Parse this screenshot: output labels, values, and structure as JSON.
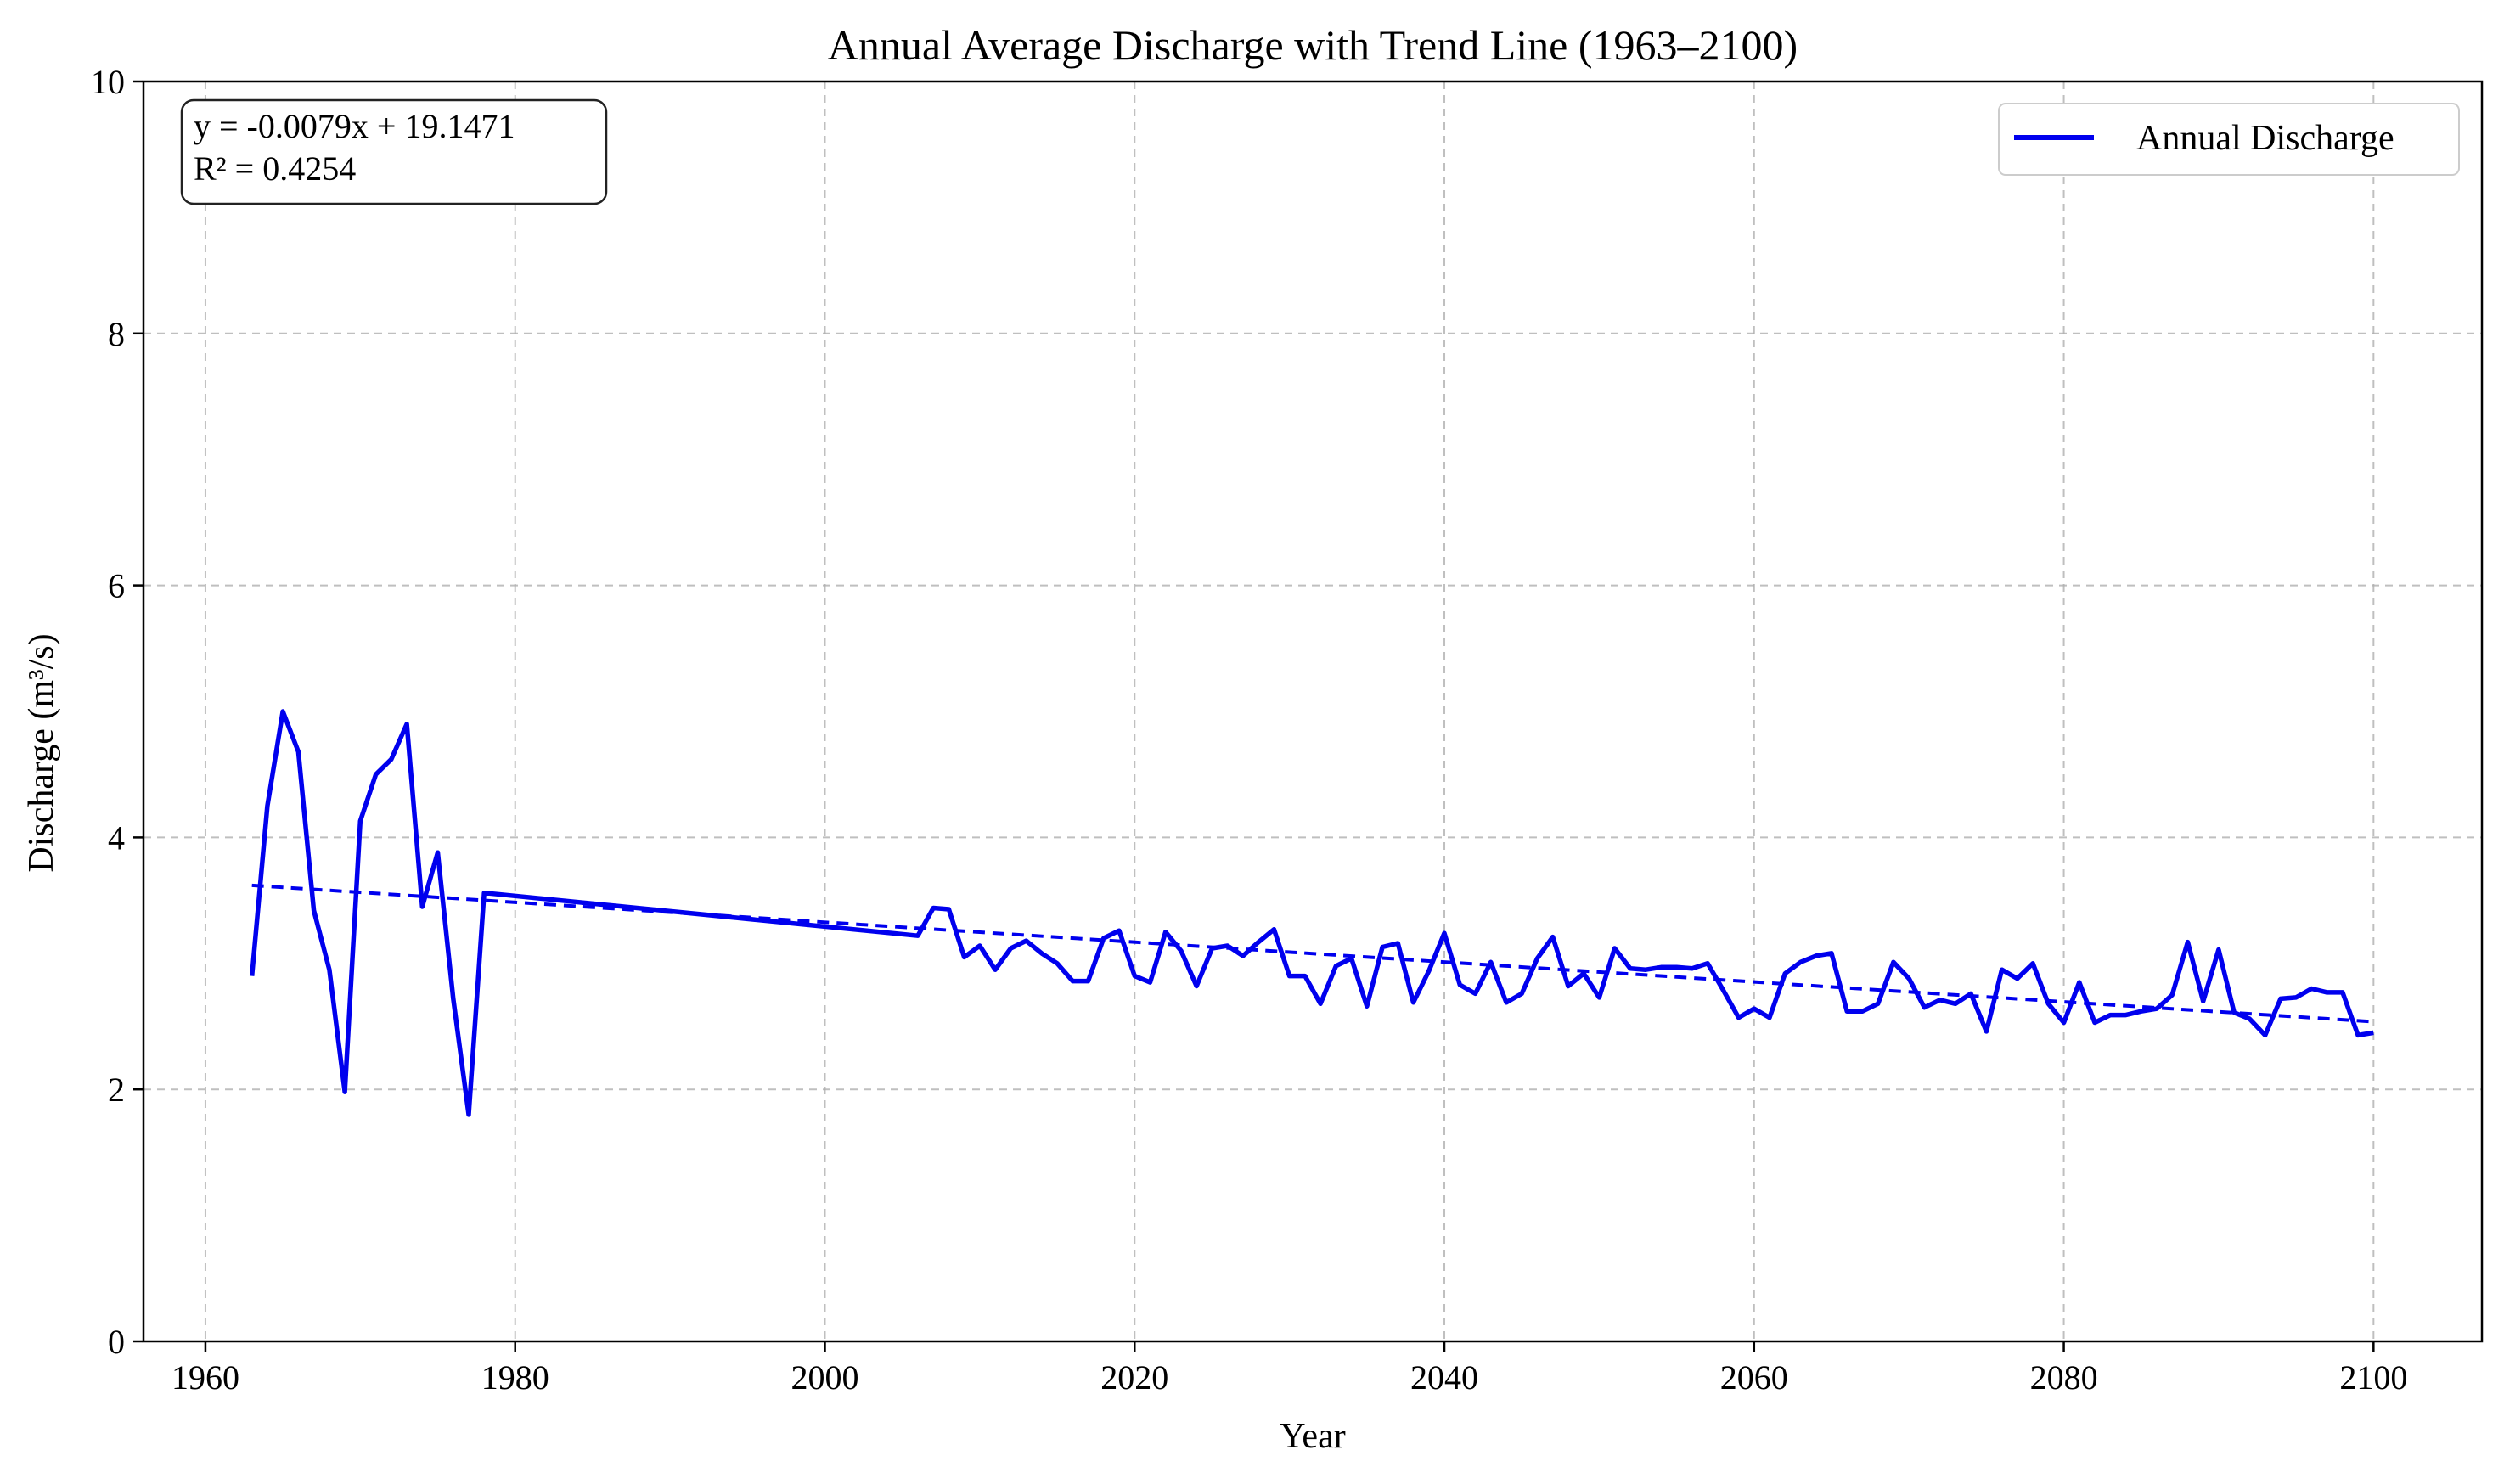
{
  "chart_data": {
    "type": "line",
    "title": "Annual Average Discharge with Trend Line (1963–2100)",
    "xlabel": "Year",
    "ylabel": "Discharge (m³/s)",
    "xlim": [
      1956,
      2107
    ],
    "ylim": [
      0,
      10
    ],
    "xticks": [
      1960,
      1980,
      2000,
      2020,
      2040,
      2060,
      2080,
      2100
    ],
    "xtick_labels": [
      "1960",
      "1980",
      "2000",
      "2020",
      "2040",
      "2060",
      "2080",
      "2100"
    ],
    "yticks": [
      0,
      2,
      4,
      6,
      8,
      10
    ],
    "ytick_labels": [
      "0",
      "2",
      "4",
      "6",
      "8",
      "10"
    ],
    "grid": true,
    "legend_position": "top-right",
    "annotation": {
      "line1": "y = -0.0079x + 19.1471",
      "line2": "R² = 0.4254",
      "position": "top-left"
    },
    "series": [
      {
        "name": "Annual Discharge",
        "color": "#0000ee",
        "style": "solid",
        "x": [
          1963,
          1964,
          1965,
          1966,
          1967,
          1968,
          1969,
          1970,
          1971,
          1972,
          1973,
          1974,
          1975,
          1976,
          1977,
          1978,
          2006,
          2007,
          2008,
          2009,
          2010,
          2011,
          2012,
          2013,
          2014,
          2015,
          2016,
          2017,
          2018,
          2019,
          2020,
          2021,
          2022,
          2023,
          2024,
          2025,
          2026,
          2027,
          2028,
          2029,
          2030,
          2031,
          2032,
          2033,
          2034,
          2035,
          2036,
          2037,
          2038,
          2039,
          2040,
          2041,
          2042,
          2043,
          2044,
          2045,
          2046,
          2047,
          2048,
          2049,
          2050,
          2051,
          2052,
          2053,
          2054,
          2055,
          2056,
          2057,
          2058,
          2059,
          2060,
          2061,
          2062,
          2063,
          2064,
          2065,
          2066,
          2067,
          2068,
          2069,
          2070,
          2071,
          2072,
          2073,
          2074,
          2075,
          2076,
          2077,
          2078,
          2079,
          2080,
          2081,
          2082,
          2083,
          2084,
          2085,
          2086,
          2087,
          2088,
          2089,
          2090,
          2091,
          2092,
          2093,
          2094,
          2095,
          2096,
          2097,
          2098,
          2099,
          2100
        ],
        "y": [
          2.9,
          4.25,
          5.0,
          4.68,
          3.42,
          2.95,
          1.98,
          4.13,
          4.5,
          4.62,
          4.9,
          3.45,
          3.88,
          2.72,
          1.8,
          3.56,
          3.22,
          3.44,
          3.43,
          3.05,
          3.14,
          2.95,
          3.12,
          3.18,
          3.08,
          3.0,
          2.86,
          2.86,
          3.2,
          3.26,
          2.9,
          2.85,
          3.25,
          3.1,
          2.82,
          3.12,
          3.14,
          3.06,
          3.17,
          3.27,
          2.9,
          2.9,
          2.68,
          2.98,
          3.04,
          2.66,
          3.13,
          3.16,
          2.69,
          2.94,
          3.24,
          2.83,
          2.76,
          3.01,
          2.69,
          2.76,
          3.04,
          3.21,
          2.82,
          2.92,
          2.73,
          3.12,
          2.96,
          2.95,
          2.97,
          2.97,
          2.96,
          3.0,
          2.79,
          2.57,
          2.64,
          2.57,
          2.92,
          3.01,
          3.06,
          3.08,
          2.62,
          2.62,
          2.68,
          3.01,
          2.88,
          2.65,
          2.71,
          2.68,
          2.76,
          2.46,
          2.95,
          2.88,
          3.0,
          2.68,
          2.53,
          2.85,
          2.53,
          2.59,
          2.59,
          2.62,
          2.64,
          2.75,
          3.17,
          2.7,
          3.11,
          2.61,
          2.56,
          2.43,
          2.72,
          2.73,
          2.8,
          2.77,
          2.77,
          2.43,
          2.45
        ]
      },
      {
        "name": "",
        "color": "#0000ee",
        "style": "dashed",
        "x": [
          1963,
          2100
        ],
        "y": [
          3.6194,
          2.5371
        ]
      }
    ]
  }
}
